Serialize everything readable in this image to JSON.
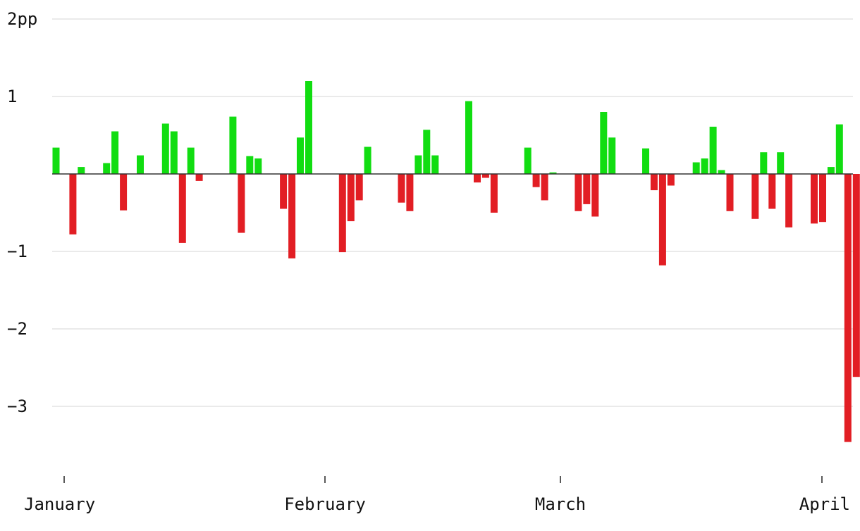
{
  "chart_data": {
    "type": "bar",
    "title": "",
    "xlabel": "",
    "ylabel": "",
    "ylim": [
      -3.9,
      2.1
    ],
    "y_ticks": [
      {
        "value": 2,
        "label": "2pp"
      },
      {
        "value": 1,
        "label": "1"
      },
      {
        "value": 0,
        "label": ""
      },
      {
        "value": -1,
        "label": "−1"
      },
      {
        "value": -2,
        "label": "−2"
      },
      {
        "value": -3,
        "label": "−3"
      }
    ],
    "x_ticks": [
      {
        "day": 0,
        "label": "January"
      },
      {
        "day": 31,
        "label": "February"
      },
      {
        "day": 59,
        "label": "March"
      },
      {
        "day": 90,
        "label": "April"
      }
    ],
    "grid": true,
    "colors": {
      "positive": "#11dd11",
      "negative": "#e21e24",
      "grid": "#e3e3e3",
      "zero_line": "#333333"
    },
    "x": [
      "Jan 1",
      "Jan 3",
      "Jan 4",
      "Jan 7",
      "Jan 8",
      "Jan 9",
      "Jan 11",
      "Jan 14",
      "Jan 15",
      "Jan 16",
      "Jan 17",
      "Jan 18",
      "Jan 22",
      "Jan 23",
      "Jan 24",
      "Jan 25",
      "Jan 28",
      "Jan 29",
      "Jan 30",
      "Jan 31",
      "Feb 4",
      "Feb 5",
      "Feb 6",
      "Feb 7",
      "Feb 11",
      "Feb 12",
      "Feb 13",
      "Feb 14",
      "Feb 15",
      "Feb 19",
      "Feb 20",
      "Feb 21",
      "Feb 22",
      "Feb 26",
      "Feb 27",
      "Feb 28",
      "Mar 1",
      "Mar 4",
      "Mar 5",
      "Mar 6",
      "Mar 7",
      "Mar 8",
      "Mar 12",
      "Mar 13",
      "Mar 14",
      "Mar 15",
      "Mar 18",
      "Mar 19",
      "Mar 20",
      "Mar 21",
      "Mar 22",
      "Mar 25",
      "Mar 26",
      "Mar 27",
      "Mar 28",
      "Mar 29",
      "Apr 1",
      "Apr 2",
      "Apr 3",
      "Apr 4"
    ],
    "day_index": [
      0,
      2,
      3,
      6,
      7,
      8,
      10,
      13,
      14,
      15,
      16,
      17,
      21,
      22,
      23,
      24,
      27,
      28,
      29,
      30,
      34,
      35,
      36,
      37,
      41,
      42,
      43,
      44,
      45,
      49,
      50,
      51,
      52,
      56,
      57,
      58,
      59,
      62,
      63,
      64,
      65,
      66,
      70,
      71,
      72,
      73,
      76,
      77,
      78,
      79,
      80,
      83,
      84,
      85,
      86,
      87,
      90,
      91,
      92,
      93
    ],
    "values": [
      0.34,
      -0.78,
      0.09,
      0.14,
      0.55,
      -0.47,
      0.24,
      0.65,
      0.55,
      -0.89,
      0.34,
      -0.09,
      0.74,
      -0.76,
      0.23,
      0.2,
      -0.45,
      -1.09,
      0.47,
      1.2,
      -1.01,
      -0.61,
      -0.34,
      0.35,
      -0.37,
      -0.48,
      0.24,
      0.57,
      0.24,
      0.94,
      -0.11,
      -0.05,
      -0.5,
      0.34,
      -0.17,
      -0.34,
      0.02,
      -0.48,
      -0.39,
      -0.55,
      0.8,
      0.47,
      0.33,
      -0.21,
      -1.18,
      -0.15,
      0.15,
      0.2,
      0.61,
      0.05,
      -0.48,
      -0.58,
      0.28,
      -0.45,
      0.28,
      -0.69,
      -0.64,
      -0.62,
      0.09,
      0.64
    ],
    "extra": {
      "day_index": [
        94,
        95
      ],
      "values": [
        -3.46,
        -2.62
      ],
      "x": [
        "Apr 5",
        "Apr 6"
      ]
    }
  }
}
